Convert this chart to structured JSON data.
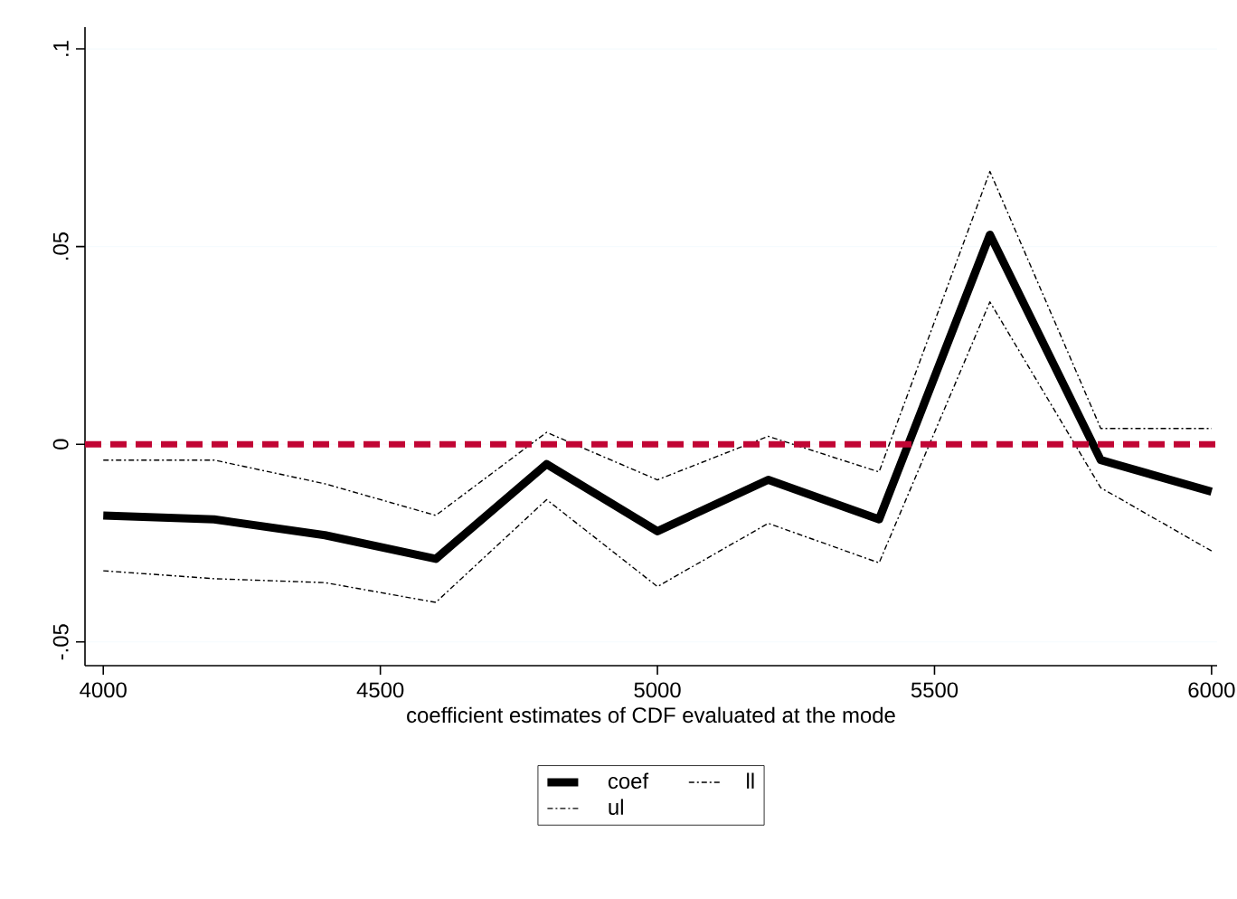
{
  "chart_data": {
    "type": "line",
    "xlabel": "coefficient estimates of CDF evaluated at the mode",
    "x": [
      4000,
      4200,
      4400,
      4600,
      4800,
      5000,
      5200,
      5400,
      5600,
      5800,
      6000
    ],
    "series": [
      {
        "name": "coef",
        "color": "#000000",
        "line_style": "solid",
        "values": [
          -0.018,
          -0.019,
          -0.023,
          -0.029,
          -0.005,
          -0.022,
          -0.009,
          -0.019,
          0.053,
          -0.004,
          -0.012
        ]
      },
      {
        "name": "ll",
        "color": "#000000",
        "line_style": "dashdot",
        "values": [
          -0.032,
          -0.034,
          -0.035,
          -0.04,
          -0.014,
          -0.036,
          -0.02,
          -0.03,
          0.036,
          -0.011,
          -0.027
        ]
      },
      {
        "name": "ul",
        "color": "#000000",
        "line_style": "dashdot",
        "values": [
          -0.004,
          -0.004,
          -0.01,
          -0.018,
          0.003,
          -0.009,
          0.002,
          -0.007,
          0.069,
          0.004,
          0.004
        ]
      }
    ],
    "xlim": [
      3967,
      6010
    ],
    "ylim": [
      -0.056,
      0.1055
    ],
    "xticks": [
      4000,
      4500,
      5000,
      5500,
      6000
    ],
    "yticks": [
      {
        "value": -0.05,
        "label": "-.05"
      },
      {
        "value": 0,
        "label": "0"
      },
      {
        "value": 0.05,
        "label": ".05"
      },
      {
        "value": 0.1,
        "label": ".1"
      }
    ],
    "ref_lines": [
      {
        "axis": "y",
        "value": 0,
        "color": "#c10534",
        "line_style": "dashed"
      }
    ],
    "grid": "y",
    "legend": "bottom",
    "marker": "none"
  }
}
